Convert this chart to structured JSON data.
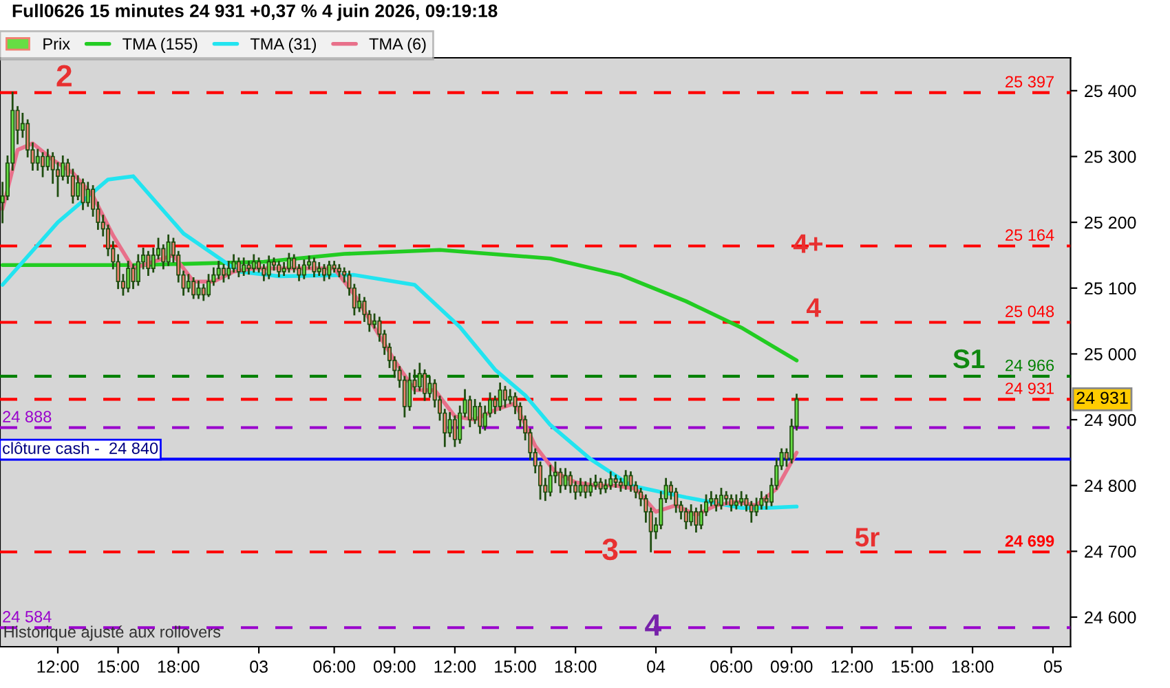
{
  "chart_data": {
    "type": "candlestick",
    "title": "Full0626 15 minutes 24 931 +0,37 % 4 juin 2026, 09:19:18",
    "categories": [
      null,
      null,
      null,
      null,
      null,
      null,
      null,
      null,
      null,
      null,
      null,
      "12:00",
      null,
      null,
      null,
      null,
      null,
      null,
      null,
      null,
      null,
      null,
      null,
      "15:00",
      null,
      null,
      null,
      null,
      null,
      null,
      null,
      null,
      null,
      null,
      null,
      "18:00",
      null,
      null,
      null,
      null,
      null,
      null,
      null,
      null,
      null,
      null,
      null,
      null,
      null,
      null,
      null,
      "03",
      null,
      null,
      null,
      null,
      null,
      null,
      null,
      null,
      null,
      null,
      null,
      null,
      null,
      null,
      "06:00",
      null,
      null,
      null,
      null,
      null,
      null,
      null,
      null,
      null,
      null,
      null,
      "09:00",
      null,
      null,
      null,
      null,
      null,
      null,
      null,
      null,
      null,
      null,
      null,
      "12:00",
      null,
      null,
      null,
      null,
      null,
      null,
      null,
      null,
      null,
      null,
      null,
      "15:00",
      null,
      null,
      null,
      null,
      null,
      null,
      null,
      null,
      null,
      null,
      null,
      "18:00",
      null,
      null,
      null,
      null,
      null,
      null,
      null,
      null,
      null,
      null,
      null,
      null,
      null,
      null,
      null,
      "04",
      null,
      null,
      null,
      null,
      null,
      null,
      null,
      null,
      null,
      null,
      null,
      null,
      null,
      null,
      "06:00",
      null,
      null,
      null,
      null,
      null,
      null,
      null,
      null,
      null,
      null,
      null,
      "09:00",
      null,
      null,
      null,
      null,
      null,
      null,
      null,
      null,
      null,
      null,
      null,
      "12:00",
      null,
      null,
      null,
      null,
      null,
      null,
      null,
      null,
      null,
      null,
      null,
      "15:00",
      null,
      null,
      null,
      null,
      null,
      null,
      null,
      null,
      null,
      null,
      null,
      "18:00",
      null,
      null,
      null,
      null,
      null,
      null,
      null,
      null,
      null,
      null,
      null,
      null,
      null,
      null,
      null,
      "05",
      null,
      null,
      null
    ],
    "ylim": [
      24555,
      25450
    ],
    "yticks": [
      {
        "value": 24600,
        "label": "24 600"
      },
      {
        "value": 24700,
        "label": "24 700"
      },
      {
        "value": 24800,
        "label": "24 800"
      },
      {
        "value": 24900,
        "label": "24 900"
      },
      {
        "value": 25000,
        "label": "25 000"
      },
      {
        "value": 25100,
        "label": "25 100"
      },
      {
        "value": 25200,
        "label": "25 200"
      },
      {
        "value": 25300,
        "label": "25 300"
      },
      {
        "value": 25400,
        "label": "25 400"
      }
    ],
    "grid": false,
    "legend": "top left",
    "series": [
      {
        "name": "Prix",
        "ohlc": [
          [
            25230,
            25260,
            25200,
            25240
          ],
          [
            25240,
            25300,
            25235,
            25290
          ],
          [
            25290,
            25397,
            25280,
            25370
          ],
          [
            25370,
            25375,
            25320,
            25340
          ],
          [
            25340,
            25365,
            25330,
            25350
          ],
          [
            25350,
            25355,
            25300,
            25310
          ],
          [
            25310,
            25320,
            25280,
            25290
          ],
          [
            25290,
            25310,
            25280,
            25300
          ],
          [
            25300,
            25305,
            25270,
            25285
          ],
          [
            25285,
            25310,
            25280,
            25300
          ],
          [
            25300,
            25305,
            25260,
            25280
          ],
          [
            25280,
            25290,
            25240,
            25270
          ],
          [
            25270,
            25300,
            25265,
            25290
          ],
          [
            25290,
            25295,
            25260,
            25270
          ],
          [
            25270,
            25280,
            25230,
            25240
          ],
          [
            25240,
            25270,
            25235,
            25260
          ],
          [
            25260,
            25265,
            25220,
            25230
          ],
          [
            25230,
            25260,
            25225,
            25250
          ],
          [
            25250,
            25255,
            25210,
            25220
          ],
          [
            25220,
            25230,
            25190,
            25200
          ],
          [
            25200,
            25210,
            25180,
            25190
          ],
          [
            25190,
            25195,
            25150,
            25160
          ],
          [
            25160,
            25170,
            25130,
            25140
          ],
          [
            25140,
            25150,
            25100,
            25110
          ],
          [
            25110,
            25120,
            25090,
            25100
          ],
          [
            25100,
            25140,
            25095,
            25130
          ],
          [
            25130,
            25135,
            25100,
            25110
          ],
          [
            25110,
            25150,
            25105,
            25140
          ],
          [
            25140,
            25160,
            25130,
            25150
          ],
          [
            25150,
            25155,
            25120,
            25130
          ],
          [
            25130,
            25160,
            25125,
            25150
          ],
          [
            25150,
            25175,
            25145,
            25160
          ],
          [
            25160,
            25165,
            25130,
            25140
          ],
          [
            25140,
            25180,
            25135,
            25170
          ],
          [
            25170,
            25175,
            25140,
            25150
          ],
          [
            25150,
            25155,
            25110,
            25120
          ],
          [
            25120,
            25125,
            25090,
            25100
          ],
          [
            25100,
            25120,
            25095,
            25110
          ],
          [
            25110,
            25115,
            25085,
            25090
          ],
          [
            25090,
            25110,
            25085,
            25100
          ],
          [
            25100,
            25105,
            25082,
            25090
          ],
          [
            25090,
            25120,
            25088,
            25110
          ],
          [
            25110,
            25130,
            25105,
            25120
          ],
          [
            25120,
            25140,
            25115,
            25130
          ],
          [
            25130,
            25135,
            25110,
            25120
          ],
          [
            25120,
            25140,
            25115,
            25130
          ],
          [
            25130,
            25150,
            25125,
            25140
          ],
          [
            25140,
            25145,
            25118,
            25125
          ],
          [
            25125,
            25145,
            25120,
            25135
          ],
          [
            25135,
            25140,
            25122,
            25130
          ],
          [
            25130,
            25150,
            25125,
            25140
          ],
          [
            25140,
            25145,
            25125,
            25130
          ],
          [
            25130,
            25135,
            25112,
            25120
          ],
          [
            25120,
            25148,
            25115,
            25140
          ],
          [
            25140,
            25145,
            25128,
            25135
          ],
          [
            25135,
            25140,
            25118,
            25125
          ],
          [
            25125,
            25138,
            25120,
            25130
          ],
          [
            25130,
            25152,
            25125,
            25145
          ],
          [
            25145,
            25150,
            25125,
            25130
          ],
          [
            25130,
            25135,
            25112,
            25120
          ],
          [
            25120,
            25142,
            25115,
            25135
          ],
          [
            25135,
            25148,
            25130,
            25140
          ],
          [
            25140,
            25145,
            25118,
            25125
          ],
          [
            25125,
            25138,
            25120,
            25130
          ],
          [
            25130,
            25135,
            25112,
            25120
          ],
          [
            25120,
            25140,
            25115,
            25135
          ],
          [
            25135,
            25140,
            25125,
            25130
          ],
          [
            25130,
            25135,
            25118,
            25125
          ],
          [
            25125,
            25130,
            25110,
            25120
          ],
          [
            25120,
            25125,
            25090,
            25100
          ],
          [
            25100,
            25105,
            25060,
            25070
          ],
          [
            25070,
            25090,
            25065,
            25080
          ],
          [
            25080,
            25085,
            25050,
            25060
          ],
          [
            25060,
            25065,
            25035,
            25045
          ],
          [
            25045,
            25060,
            25040,
            25050
          ],
          [
            25050,
            25055,
            25020,
            25030
          ],
          [
            25030,
            25035,
            25000,
            25010
          ],
          [
            25010,
            25015,
            24980,
            24990
          ],
          [
            24990,
            24995,
            24965,
            24975
          ],
          [
            24975,
            24980,
            24950,
            24960
          ],
          [
            24960,
            24965,
            24905,
            24920
          ],
          [
            24920,
            24970,
            24915,
            24960
          ],
          [
            24960,
            24975,
            24940,
            24950
          ],
          [
            24950,
            24985,
            24945,
            24970
          ],
          [
            24970,
            24975,
            24930,
            24940
          ],
          [
            24940,
            24965,
            24935,
            24955
          ],
          [
            24955,
            24960,
            24920,
            24930
          ],
          [
            24930,
            24935,
            24900,
            24910
          ],
          [
            24910,
            24915,
            24860,
            24880
          ],
          [
            24880,
            24910,
            24875,
            24900
          ],
          [
            24900,
            24905,
            24860,
            24870
          ],
          [
            24870,
            24920,
            24865,
            24910
          ],
          [
            24910,
            24945,
            24905,
            24930
          ],
          [
            24930,
            24935,
            24890,
            24900
          ],
          [
            24900,
            24930,
            24895,
            24920
          ],
          [
            24920,
            24925,
            24880,
            24890
          ],
          [
            24890,
            24920,
            24885,
            24910
          ],
          [
            24910,
            24940,
            24905,
            24930
          ],
          [
            24930,
            24935,
            24910,
            24920
          ],
          [
            24920,
            24955,
            24915,
            24945
          ],
          [
            24945,
            24950,
            24920,
            24930
          ],
          [
            24930,
            24945,
            24925,
            24935
          ],
          [
            24935,
            24940,
            24910,
            24920
          ],
          [
            24920,
            24925,
            24890,
            24900
          ],
          [
            24900,
            24905,
            24870,
            24880
          ],
          [
            24880,
            24885,
            24840,
            24850
          ],
          [
            24850,
            24855,
            24820,
            24830
          ],
          [
            24830,
            24835,
            24780,
            24800
          ],
          [
            24800,
            24810,
            24778,
            24790
          ],
          [
            24790,
            24830,
            24785,
            24815
          ],
          [
            24815,
            24835,
            24805,
            24820
          ],
          [
            24820,
            24825,
            24790,
            24800
          ],
          [
            24800,
            24825,
            24795,
            24815
          ],
          [
            24815,
            24820,
            24790,
            24800
          ],
          [
            24800,
            24805,
            24780,
            24790
          ],
          [
            24790,
            24810,
            24785,
            24800
          ],
          [
            24800,
            24805,
            24782,
            24790
          ],
          [
            24790,
            24810,
            24785,
            24800
          ],
          [
            24800,
            24815,
            24795,
            24805
          ],
          [
            24805,
            24810,
            24788,
            24795
          ],
          [
            24795,
            24808,
            24790,
            24800
          ],
          [
            24800,
            24820,
            24795,
            24810
          ],
          [
            24810,
            24815,
            24798,
            24805
          ],
          [
            24805,
            24810,
            24792,
            24800
          ],
          [
            24800,
            24822,
            24795,
            24815
          ],
          [
            24815,
            24820,
            24792,
            24800
          ],
          [
            24800,
            24805,
            24782,
            24790
          ],
          [
            24790,
            24795,
            24770,
            24780
          ],
          [
            24780,
            24785,
            24745,
            24760
          ],
          [
            24760,
            24765,
            24700,
            24730
          ],
          [
            24730,
            24750,
            24720,
            24740
          ],
          [
            24740,
            24790,
            24735,
            24780
          ],
          [
            24780,
            24810,
            24775,
            24800
          ],
          [
            24800,
            24805,
            24780,
            24790
          ],
          [
            24790,
            24795,
            24760,
            24770
          ],
          [
            24770,
            24775,
            24750,
            24760
          ],
          [
            24760,
            24765,
            24735,
            24745
          ],
          [
            24745,
            24770,
            24740,
            24760
          ],
          [
            24760,
            24765,
            24730,
            24740
          ],
          [
            24740,
            24770,
            24735,
            24760
          ],
          [
            24760,
            24785,
            24755,
            24775
          ],
          [
            24775,
            24790,
            24770,
            24780
          ],
          [
            24780,
            24785,
            24762,
            24770
          ],
          [
            24770,
            24795,
            24765,
            24785
          ],
          [
            24785,
            24790,
            24772,
            24780
          ],
          [
            24780,
            24785,
            24762,
            24770
          ],
          [
            24770,
            24785,
            24765,
            24775
          ],
          [
            24775,
            24790,
            24770,
            24780
          ],
          [
            24780,
            24785,
            24762,
            24770
          ],
          [
            24770,
            24775,
            24745,
            24760
          ],
          [
            24760,
            24780,
            24755,
            24770
          ],
          [
            24770,
            24790,
            24765,
            24780
          ],
          [
            24780,
            24785,
            24765,
            24775
          ],
          [
            24775,
            24810,
            24770,
            24800
          ],
          [
            24800,
            24840,
            24795,
            24830
          ],
          [
            24830,
            24855,
            24825,
            24850
          ],
          [
            24850,
            24855,
            24830,
            24840
          ],
          [
            24840,
            24900,
            24835,
            24890
          ],
          [
            24890,
            24938,
            24885,
            24931
          ],
          null,
          null,
          null,
          null,
          null,
          null,
          null,
          null,
          null,
          null,
          null,
          null,
          null,
          null,
          null,
          null,
          null,
          null,
          null,
          null,
          null,
          null,
          null,
          null,
          null,
          null,
          null,
          null,
          null,
          null,
          null,
          null,
          null,
          null,
          null,
          null,
          null,
          null,
          null,
          null,
          null,
          null,
          null,
          null,
          null,
          null,
          null,
          null,
          null,
          null,
          null,
          null,
          null,
          null
        ]
      },
      {
        "name": "TMA (155)",
        "type": "line",
        "color": "#22cc22",
        "values": [
          25135,
          null,
          null,
          null,
          null,
          null,
          null,
          null,
          null,
          null,
          null,
          null,
          null,
          null,
          null,
          null,
          null,
          null,
          null,
          null,
          null,
          null,
          null,
          null,
          null,
          null,
          null,
          25135,
          null,
          null,
          null,
          null,
          null,
          null,
          null,
          null,
          null,
          null,
          null,
          null,
          null,
          null,
          null,
          null,
          null,
          null,
          null,
          null,
          null,
          null,
          null,
          null,
          25140,
          null,
          null,
          null,
          null,
          null,
          null,
          null,
          null,
          null,
          null,
          null,
          null,
          null,
          null,
          null,
          25152,
          null,
          null,
          null,
          null,
          null,
          null,
          null,
          null,
          null,
          null,
          null,
          null,
          null,
          null,
          null,
          null,
          null,
          null,
          25158,
          null,
          null,
          null,
          null,
          null,
          null,
          null,
          null,
          null,
          null,
          null,
          null,
          null,
          null,
          null,
          null,
          null,
          null,
          null,
          null,
          null,
          25145,
          null,
          null,
          null,
          null,
          null,
          null,
          null,
          null,
          null,
          null,
          null,
          null,
          null,
          25120,
          null,
          null,
          null,
          null,
          null,
          null,
          null,
          null,
          null,
          null,
          null,
          null,
          25080,
          null,
          null,
          null,
          null,
          null,
          null,
          null,
          null,
          null,
          null,
          25040,
          null,
          null,
          null,
          null,
          null,
          null,
          null,
          null,
          null,
          null,
          24990,
          null,
          null,
          null,
          null,
          null,
          null,
          null,
          null,
          null,
          null,
          null,
          null,
          null,
          null,
          null,
          null,
          null,
          null,
          null,
          null,
          null,
          null,
          null,
          null,
          null,
          null,
          null,
          null,
          null,
          null,
          null,
          null,
          null,
          null,
          null,
          null,
          null,
          null,
          null,
          null,
          null,
          null,
          null,
          null,
          null,
          null,
          null,
          null,
          null,
          null,
          null,
          null,
          null,
          null
        ]
      },
      {
        "name": "TMA (31)",
        "type": "line",
        "color": "#22e4f0",
        "values": [
          25105,
          null,
          null,
          null,
          null,
          null,
          null,
          null,
          null,
          null,
          null,
          25200,
          null,
          null,
          null,
          null,
          null,
          null,
          null,
          null,
          null,
          25265,
          null,
          null,
          null,
          null,
          25270,
          null,
          null,
          null,
          null,
          null,
          null,
          null,
          null,
          null,
          25183,
          null,
          null,
          null,
          null,
          null,
          null,
          null,
          null,
          null,
          null,
          25125,
          null,
          null,
          null,
          null,
          null,
          null,
          null,
          25118,
          null,
          null,
          null,
          null,
          null,
          null,
          null,
          null,
          null,
          null,
          null,
          null,
          null,
          null,
          25120,
          null,
          null,
          null,
          null,
          null,
          null,
          null,
          null,
          null,
          null,
          null,
          25105,
          null,
          null,
          null,
          null,
          null,
          null,
          null,
          null,
          25041,
          null,
          null,
          null,
          null,
          null,
          null,
          24976,
          null,
          null,
          null,
          null,
          null,
          24937,
          null,
          null,
          null,
          null,
          24892,
          null,
          null,
          null,
          null,
          null,
          null,
          null,
          24840,
          null,
          null,
          null,
          null,
          null,
          null,
          null,
          24800,
          null,
          null,
          null,
          null,
          null,
          null,
          null,
          null,
          null,
          null,
          24782,
          null,
          null,
          null,
          null,
          null,
          null,
          null,
          null,
          null,
          null,
          24766,
          null,
          null,
          null,
          null,
          24766,
          null,
          null,
          null,
          null,
          null,
          24768,
          null,
          null,
          null,
          null,
          null,
          null,
          null,
          null,
          null,
          null,
          null,
          null,
          null,
          null,
          null,
          null,
          null,
          null,
          null,
          null,
          null,
          null,
          null,
          null,
          null,
          null,
          null,
          null,
          null,
          null,
          null,
          null,
          null,
          null,
          null,
          null,
          null,
          null,
          null,
          null,
          null,
          null,
          null,
          null,
          null,
          null,
          null,
          null,
          null,
          null,
          null,
          null,
          null,
          null
        ]
      },
      {
        "name": "TMA (6)",
        "type": "line",
        "color": "#e8708a",
        "values": [
          25220,
          null,
          null,
          25310,
          null,
          null,
          25320,
          null,
          null,
          null,
          25295,
          null,
          null,
          null,
          25275,
          null,
          null,
          null,
          25240,
          null,
          null,
          null,
          25180,
          null,
          null,
          null,
          25130,
          null,
          null,
          null,
          25140,
          null,
          null,
          null,
          25150,
          null,
          null,
          null,
          25110,
          null,
          null,
          null,
          25110,
          null,
          null,
          null,
          25125,
          null,
          null,
          null,
          25130,
          null,
          null,
          null,
          null,
          null,
          null,
          null,
          25130,
          null,
          null,
          null,
          null,
          null,
          null,
          null,
          25130,
          null,
          null,
          null,
          25090,
          null,
          null,
          null,
          25040,
          null,
          null,
          null,
          24990,
          null,
          null,
          null,
          24945,
          null,
          null,
          null,
          24945,
          null,
          null,
          null,
          24905,
          null,
          null,
          null,
          24900,
          null,
          null,
          null,
          24915,
          null,
          null,
          null,
          24925,
          null,
          null,
          null,
          24860,
          null,
          null,
          null,
          24820,
          null,
          null,
          null,
          24805,
          null,
          null,
          null,
          24800,
          null,
          null,
          null,
          24800,
          null,
          null,
          null,
          24795,
          null,
          null,
          null,
          24760,
          null,
          null,
          null,
          24770,
          null,
          null,
          null,
          24755,
          null,
          null,
          null,
          24770,
          null,
          null,
          null,
          24775,
          null,
          null,
          null,
          24770,
          null,
          null,
          null,
          24795,
          null,
          null,
          null,
          24850,
          null,
          null,
          null,
          null,
          null,
          null,
          null,
          null,
          null,
          null,
          null,
          null,
          null,
          null,
          null,
          null,
          null,
          null,
          null,
          null,
          null,
          null,
          null,
          null,
          null,
          null,
          null,
          null,
          null,
          null,
          null,
          null,
          null,
          null,
          null,
          null,
          null,
          null,
          null,
          null,
          null,
          null,
          null,
          null,
          null,
          null,
          null,
          null,
          null,
          null,
          null,
          null,
          null,
          null
        ]
      }
    ],
    "ref_lines": [
      {
        "axis": "y",
        "value": 25397,
        "label": "25 397",
        "color": "#ff0000",
        "line_style": "dashed"
      },
      {
        "axis": "y",
        "value": 25164,
        "label": "25 164",
        "color": "#ff0000",
        "line_style": "dashed"
      },
      {
        "axis": "y",
        "value": 25048,
        "label": "25 048",
        "color": "#ff0000",
        "line_style": "dashed"
      },
      {
        "axis": "y",
        "value": 24966,
        "label": "24 966",
        "color": "#008000",
        "line_style": "dashed"
      },
      {
        "axis": "y",
        "value": 24931,
        "label": "24 931",
        "color": "#ff0000",
        "line_style": "dashed"
      },
      {
        "axis": "y",
        "value": 24888,
        "label": "24 888",
        "color": "#9900cc",
        "line_style": "dashed"
      },
      {
        "axis": "y",
        "value": 24840,
        "label": "clôture cash -  24 840",
        "color": "#0000ff",
        "line_style": "solid"
      },
      {
        "axis": "y",
        "value": 24699,
        "label": "24 699",
        "color": "#ff0000",
        "line_style": "dashed"
      },
      {
        "axis": "y",
        "value": 24584,
        "label": "24 584",
        "color": "#9900cc",
        "line_style": "dashed"
      }
    ],
    "annotations": [
      {
        "text": "2",
        "y": 25397
      },
      {
        "text": "3",
        "y": 24699
      },
      {
        "text": "4",
        "y": 24584
      },
      {
        "text": "4+",
        "y": 25164
      },
      {
        "text": "4",
        "y": 25048
      },
      {
        "text": "5r",
        "y": 24699
      },
      "S1",
      "Historique ajusté aux rollovers",
      "24 931"
    ]
  }
}
